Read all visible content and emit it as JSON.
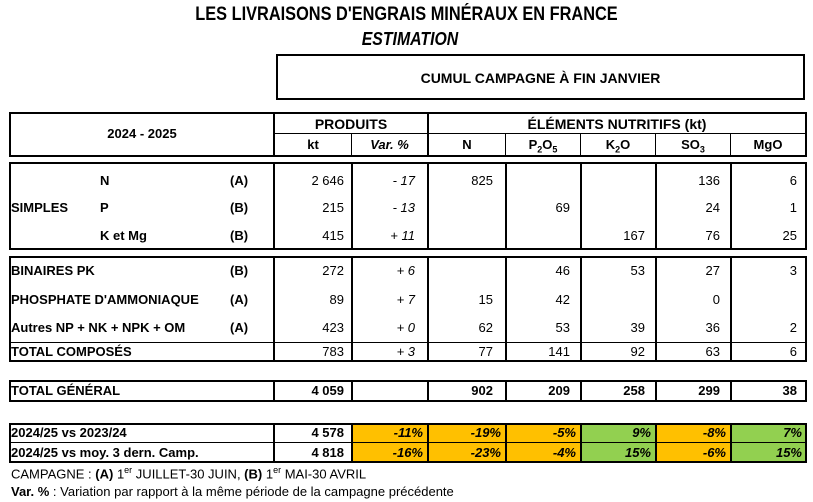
{
  "header": {
    "title": "LES LIVRAISONS D'ENGRAIS MINÉRAUX EN FRANCE",
    "subtitle": "ESTIMATION",
    "cumul": "CUMUL CAMPAGNE À FIN JANVIER"
  },
  "table_head": {
    "season": "2024 - 2025",
    "produits": "PRODUITS",
    "elements": "ÉLÉMENTS NUTRITIFS (kt)",
    "kt": "kt",
    "var": "Var. %",
    "n": "N",
    "p2o5": {
      "base": "P",
      "s1": "2",
      "mid": "O",
      "s2": "5"
    },
    "k2o": {
      "base": "K",
      "s1": "2",
      "mid": "O"
    },
    "so3": {
      "base": "SO",
      "s1": "3"
    },
    "mgo": "MgO"
  },
  "simples": {
    "group_label": "SIMPLES",
    "rows": [
      {
        "name": "N",
        "code": "(A)",
        "kt": "2 646",
        "var": "- 17",
        "n": "825",
        "p2o5": "",
        "k2o": "",
        "so3": "136",
        "mgo": "6"
      },
      {
        "name": "P",
        "code": "(B)",
        "kt": "215",
        "var": "- 13",
        "n": "",
        "p2o5": "69",
        "k2o": "",
        "so3": "24",
        "mgo": "1"
      },
      {
        "name": "K et Mg",
        "code": "(B)",
        "kt": "415",
        "var": "+ 11",
        "n": "",
        "p2o5": "",
        "k2o": "167",
        "so3": "76",
        "mgo": "25"
      }
    ]
  },
  "composes": {
    "rows": [
      {
        "name": "BINAIRES PK",
        "code": "(B)",
        "kt": "272",
        "var": "+ 6",
        "n": "",
        "p2o5": "46",
        "k2o": "53",
        "so3": "27",
        "mgo": "3"
      },
      {
        "name": "PHOSPHATE D'AMMONIAQUE",
        "code": "(A)",
        "kt": "89",
        "var": "+ 7",
        "n": "15",
        "p2o5": "42",
        "k2o": "",
        "so3": "0",
        "mgo": ""
      },
      {
        "name": "Autres NP + NK + NPK + OM",
        "code": "(A)",
        "kt": "423",
        "var": "+ 0",
        "n": "62",
        "p2o5": "53",
        "k2o": "39",
        "so3": "36",
        "mgo": "2"
      }
    ],
    "total": {
      "name": "TOTAL COMPOSÉS",
      "kt": "783",
      "var": "+ 3",
      "n": "77",
      "p2o5": "141",
      "k2o": "92",
      "so3": "63",
      "mgo": "6"
    }
  },
  "total_general": {
    "name": "TOTAL GÉNÉRAL",
    "kt": "4 059",
    "var": "",
    "n": "902",
    "p2o5": "209",
    "k2o": "258",
    "so3": "299",
    "mgo": "38"
  },
  "comparisons": [
    {
      "name": "2024/25 vs 2023/24",
      "kt": "4 578",
      "var": "-11%",
      "n": "-19%",
      "p2o5": "-5%",
      "k2o": "9%",
      "so3": "-8%",
      "mgo": "7%"
    },
    {
      "name": "2024/25 vs moy. 3 dern. Camp.",
      "kt": "4 818",
      "var": "-16%",
      "n": "-23%",
      "p2o5": "-4%",
      "k2o": "15%",
      "so3": "-6%",
      "mgo": "15%"
    }
  ],
  "colors": {
    "yellow": "#ffc000",
    "green": "#92d050"
  },
  "footer": {
    "campagne_prefix": "CAMPAGNE : ",
    "a_code": "(A)",
    "a_day": " 1",
    "a_sup": "er",
    "a_text": " JUILLET-30 JUIN, ",
    "b_code": "(B)",
    "b_day": " 1",
    "b_sup": "er",
    "b_text": " MAI-30 AVRIL",
    "var_label": "Var. %",
    "var_text": " : Variation par rapport à la même période de la campagne précédente"
  }
}
